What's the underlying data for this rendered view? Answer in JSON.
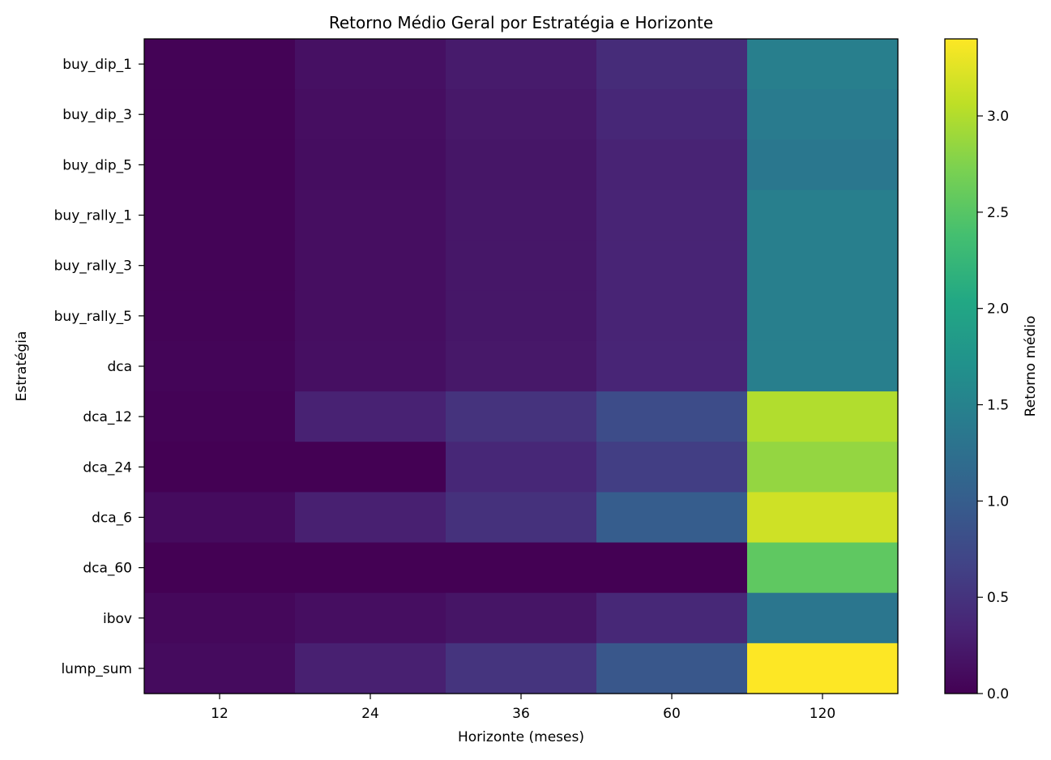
{
  "chart_data": {
    "type": "heatmap",
    "title": "Retorno Médio Geral por Estratégia e Horizonte",
    "xlabel": "Horizonte (meses)",
    "ylabel": "Estratégia",
    "x_categories": [
      "12",
      "24",
      "36",
      "60",
      "120"
    ],
    "y_categories": [
      "buy_dip_1",
      "buy_dip_3",
      "buy_dip_5",
      "buy_rally_1",
      "buy_rally_3",
      "buy_rally_5",
      "dca",
      "dca_12",
      "dca_24",
      "dca_6",
      "dca_60",
      "ibov",
      "lump_sum"
    ],
    "values": [
      [
        0.02,
        0.15,
        0.25,
        0.42,
        1.45
      ],
      [
        0.02,
        0.13,
        0.22,
        0.37,
        1.4
      ],
      [
        0.02,
        0.12,
        0.2,
        0.33,
        1.35
      ],
      [
        0.03,
        0.13,
        0.21,
        0.34,
        1.45
      ],
      [
        0.03,
        0.13,
        0.21,
        0.34,
        1.45
      ],
      [
        0.03,
        0.13,
        0.21,
        0.34,
        1.45
      ],
      [
        0.04,
        0.14,
        0.22,
        0.35,
        1.45
      ],
      [
        0.02,
        0.32,
        0.5,
        0.78,
        3.0
      ],
      [
        0.0,
        0.0,
        0.37,
        0.62,
        2.85
      ],
      [
        0.1,
        0.3,
        0.48,
        1.0,
        3.15
      ],
      [
        0.0,
        0.0,
        0.0,
        0.0,
        2.55
      ],
      [
        0.07,
        0.13,
        0.19,
        0.38,
        1.33
      ],
      [
        0.1,
        0.3,
        0.51,
        0.92,
        3.4
      ]
    ],
    "colorbar": {
      "label": "Retorno médio",
      "range": [
        0.0,
        3.4
      ],
      "ticks": [
        0.0,
        0.5,
        1.0,
        1.5,
        2.0,
        2.5,
        3.0
      ],
      "tick_labels": [
        "0.0",
        "0.5",
        "1.0",
        "1.5",
        "2.0",
        "2.5",
        "3.0"
      ],
      "colormap": "viridis"
    },
    "grid": false,
    "legend": "colorbar-right"
  }
}
